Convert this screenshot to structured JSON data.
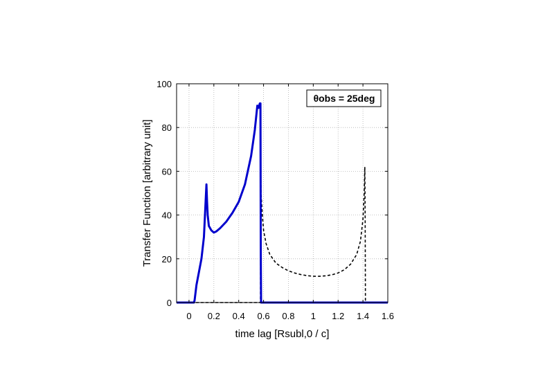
{
  "chart_data": {
    "type": "line",
    "xlabel": "time lag [Rsubl,0 / c]",
    "ylabel": "Transfer Function [arbitrary unit]",
    "xlim": [
      -0.1,
      1.6
    ],
    "ylim": [
      0,
      100
    ],
    "xticks": [
      0,
      0.2,
      0.4,
      0.6,
      0.8,
      1,
      1.2,
      1.4,
      1.6
    ],
    "xtick_labels": [
      "0",
      "0.2",
      "0.4",
      "0.6",
      "0.8",
      "1",
      "1.2",
      "1.4",
      "1.6"
    ],
    "yticks": [
      0,
      20,
      40,
      60,
      80,
      100
    ],
    "ytick_labels": [
      "0",
      "20",
      "40",
      "60",
      "80",
      "100"
    ],
    "grid": true,
    "annotation": "θobs = 25deg",
    "annotation_position": "top-right",
    "series": [
      {
        "style": "solid",
        "color": "#0000cc",
        "x": [
          -0.1,
          0.04,
          0.045,
          0.06,
          0.08,
          0.1,
          0.12,
          0.13,
          0.14,
          0.145,
          0.15,
          0.16,
          0.18,
          0.2,
          0.22,
          0.25,
          0.3,
          0.35,
          0.4,
          0.45,
          0.5,
          0.53,
          0.55,
          0.56,
          0.57,
          0.575,
          0.578,
          0.58,
          0.6,
          1.6
        ],
        "y": [
          0,
          0,
          1,
          8,
          14,
          20,
          30,
          42,
          54,
          46,
          40,
          35,
          33,
          32,
          32.5,
          34,
          37,
          41,
          46,
          54,
          67,
          79,
          90,
          89,
          91,
          91,
          20,
          0,
          0,
          0
        ]
      },
      {
        "style": "dashed",
        "color": "#000000",
        "x": [
          -0.1,
          0.575,
          0.578,
          0.58,
          0.59,
          0.6,
          0.62,
          0.65,
          0.7,
          0.75,
          0.8,
          0.85,
          0.9,
          0.95,
          1,
          1.05,
          1.1,
          1.15,
          1.2,
          1.25,
          1.3,
          1.35,
          1.38,
          1.4,
          1.41,
          1.415,
          1.418,
          1.42,
          1.6
        ],
        "y": [
          0,
          0,
          62,
          50,
          40,
          33,
          27,
          22,
          18,
          16,
          14.5,
          13.5,
          12.8,
          12.3,
          12,
          12,
          12.2,
          12.7,
          13.5,
          15,
          17.5,
          22,
          28,
          38,
          50,
          62,
          40,
          0,
          0
        ]
      }
    ]
  }
}
